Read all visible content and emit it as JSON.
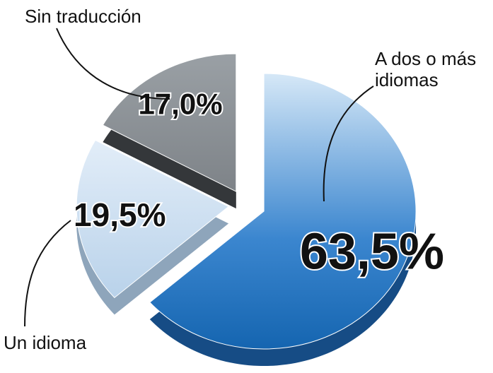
{
  "chart_data": {
    "type": "pie",
    "categories": [
      "A dos o más idiomas",
      "Un idioma",
      "Sin traducción"
    ],
    "values": [
      63.5,
      19.5,
      17.0
    ],
    "value_labels": [
      "63,5%",
      "19,5%",
      "17,0%"
    ],
    "colors": [
      "#1f6fc0",
      "#c5dbef",
      "#8c9196"
    ]
  }
}
